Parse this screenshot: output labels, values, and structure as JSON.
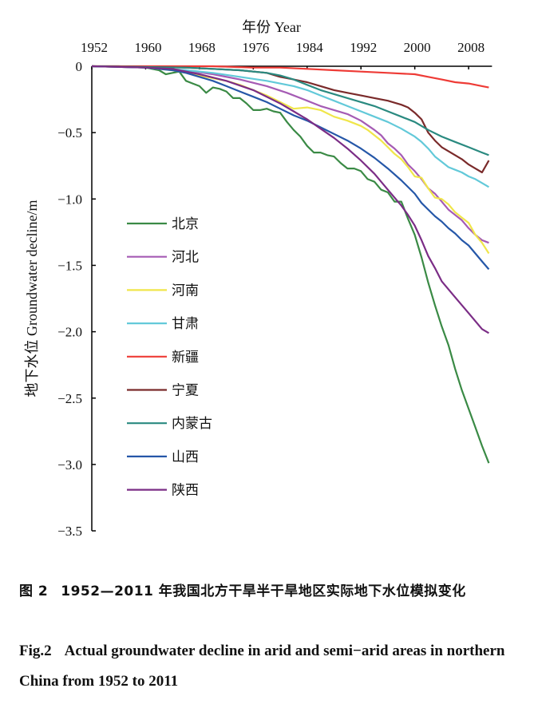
{
  "chart_data": {
    "type": "line",
    "xlabel": "年份 Year",
    "ylabel": "地下水位 Groundwater decline/m",
    "x_axis_position": "top",
    "xlim": [
      1952,
      2011
    ],
    "ylim": [
      -3.5,
      0
    ],
    "x_ticks": [
      1952,
      1960,
      1968,
      1976,
      1984,
      1992,
      2000,
      2008
    ],
    "x_tick_labels": [
      "1952",
      "1960",
      "1968",
      "1976",
      "1984",
      "1992",
      "2000",
      "2008"
    ],
    "y_ticks": [
      0,
      -0.5,
      -1.0,
      -1.5,
      -2.0,
      -2.5,
      -3.0,
      -3.5
    ],
    "y_tick_labels": [
      "0",
      "−0.5",
      "−1.0",
      "−1.5",
      "−2.0",
      "−2.5",
      "−3.0",
      "−3.5"
    ],
    "grid": false,
    "legend_position": "left-middle",
    "series": [
      {
        "name": "北京",
        "color": "#3a8a45",
        "points": [
          [
            1952,
            0
          ],
          [
            1956,
            0
          ],
          [
            1960,
            -0.01
          ],
          [
            1962,
            -0.03
          ],
          [
            1963,
            -0.06
          ],
          [
            1964,
            -0.05
          ],
          [
            1965,
            -0.04
          ],
          [
            1966,
            -0.11
          ],
          [
            1967,
            -0.13
          ],
          [
            1968,
            -0.15
          ],
          [
            1969,
            -0.2
          ],
          [
            1970,
            -0.16
          ],
          [
            1971,
            -0.17
          ],
          [
            1972,
            -0.19
          ],
          [
            1973,
            -0.24
          ],
          [
            1974,
            -0.24
          ],
          [
            1975,
            -0.28
          ],
          [
            1976,
            -0.33
          ],
          [
            1977,
            -0.33
          ],
          [
            1978,
            -0.32
          ],
          [
            1979,
            -0.34
          ],
          [
            1980,
            -0.35
          ],
          [
            1981,
            -0.42
          ],
          [
            1982,
            -0.48
          ],
          [
            1983,
            -0.53
          ],
          [
            1984,
            -0.6
          ],
          [
            1985,
            -0.65
          ],
          [
            1986,
            -0.65
          ],
          [
            1987,
            -0.67
          ],
          [
            1988,
            -0.68
          ],
          [
            1989,
            -0.73
          ],
          [
            1990,
            -0.77
          ],
          [
            1991,
            -0.77
          ],
          [
            1992,
            -0.79
          ],
          [
            1993,
            -0.85
          ],
          [
            1994,
            -0.87
          ],
          [
            1995,
            -0.93
          ],
          [
            1996,
            -0.95
          ],
          [
            1997,
            -1.02
          ],
          [
            1998,
            -1.02
          ],
          [
            1999,
            -1.15
          ],
          [
            2000,
            -1.27
          ],
          [
            2001,
            -1.44
          ],
          [
            2002,
            -1.63
          ],
          [
            2003,
            -1.8
          ],
          [
            2004,
            -1.96
          ],
          [
            2005,
            -2.1
          ],
          [
            2006,
            -2.28
          ],
          [
            2007,
            -2.44
          ],
          [
            2008,
            -2.58
          ],
          [
            2009,
            -2.72
          ],
          [
            2010,
            -2.86
          ],
          [
            2011,
            -2.99
          ]
        ]
      },
      {
        "name": "河北",
        "color": "#a55bb4",
        "points": [
          [
            1952,
            0
          ],
          [
            1960,
            -0.01
          ],
          [
            1966,
            -0.03
          ],
          [
            1970,
            -0.06
          ],
          [
            1974,
            -0.1
          ],
          [
            1978,
            -0.15
          ],
          [
            1981,
            -0.2
          ],
          [
            1984,
            -0.26
          ],
          [
            1986,
            -0.3
          ],
          [
            1988,
            -0.33
          ],
          [
            1990,
            -0.36
          ],
          [
            1992,
            -0.41
          ],
          [
            1994,
            -0.48
          ],
          [
            1995,
            -0.52
          ],
          [
            1996,
            -0.58
          ],
          [
            1997,
            -0.62
          ],
          [
            1998,
            -0.67
          ],
          [
            1999,
            -0.74
          ],
          [
            2000,
            -0.79
          ],
          [
            2001,
            -0.85
          ],
          [
            2002,
            -0.92
          ],
          [
            2003,
            -0.96
          ],
          [
            2004,
            -1.02
          ],
          [
            2005,
            -1.08
          ],
          [
            2006,
            -1.12
          ],
          [
            2007,
            -1.16
          ],
          [
            2008,
            -1.22
          ],
          [
            2009,
            -1.27
          ],
          [
            2010,
            -1.31
          ],
          [
            2011,
            -1.33
          ]
        ]
      },
      {
        "name": "河南",
        "color": "#f0e64a",
        "points": [
          [
            1952,
            0
          ],
          [
            1960,
            -0.01
          ],
          [
            1964,
            -0.03
          ],
          [
            1966,
            -0.05
          ],
          [
            1968,
            -0.07
          ],
          [
            1970,
            -0.09
          ],
          [
            1972,
            -0.11
          ],
          [
            1974,
            -0.14
          ],
          [
            1976,
            -0.18
          ],
          [
            1978,
            -0.22
          ],
          [
            1980,
            -0.27
          ],
          [
            1982,
            -0.32
          ],
          [
            1984,
            -0.31
          ],
          [
            1986,
            -0.33
          ],
          [
            1988,
            -0.38
          ],
          [
            1990,
            -0.41
          ],
          [
            1992,
            -0.45
          ],
          [
            1993,
            -0.48
          ],
          [
            1994,
            -0.52
          ],
          [
            1995,
            -0.56
          ],
          [
            1996,
            -0.61
          ],
          [
            1997,
            -0.66
          ],
          [
            1998,
            -0.7
          ],
          [
            1999,
            -0.76
          ],
          [
            2000,
            -0.83
          ],
          [
            2001,
            -0.84
          ],
          [
            2002,
            -0.92
          ],
          [
            2003,
            -0.99
          ],
          [
            2004,
            -1.0
          ],
          [
            2005,
            -1.04
          ],
          [
            2006,
            -1.1
          ],
          [
            2007,
            -1.14
          ],
          [
            2008,
            -1.18
          ],
          [
            2009,
            -1.27
          ],
          [
            2010,
            -1.33
          ],
          [
            2011,
            -1.41
          ]
        ]
      },
      {
        "name": "甘肃",
        "color": "#62c9d9",
        "points": [
          [
            1952,
            0
          ],
          [
            1960,
            -0.01
          ],
          [
            1966,
            -0.03
          ],
          [
            1970,
            -0.05
          ],
          [
            1974,
            -0.08
          ],
          [
            1978,
            -0.11
          ],
          [
            1982,
            -0.15
          ],
          [
            1984,
            -0.18
          ],
          [
            1986,
            -0.22
          ],
          [
            1988,
            -0.26
          ],
          [
            1990,
            -0.3
          ],
          [
            1992,
            -0.34
          ],
          [
            1994,
            -0.38
          ],
          [
            1996,
            -0.42
          ],
          [
            1998,
            -0.47
          ],
          [
            2000,
            -0.53
          ],
          [
            2001,
            -0.57
          ],
          [
            2002,
            -0.62
          ],
          [
            2003,
            -0.68
          ],
          [
            2004,
            -0.72
          ],
          [
            2005,
            -0.76
          ],
          [
            2006,
            -0.78
          ],
          [
            2007,
            -0.8
          ],
          [
            2008,
            -0.83
          ],
          [
            2009,
            -0.85
          ],
          [
            2010,
            -0.88
          ],
          [
            2011,
            -0.91
          ]
        ]
      },
      {
        "name": "新疆",
        "color": "#ee3b36",
        "points": [
          [
            1952,
            0
          ],
          [
            1970,
            0
          ],
          [
            1976,
            -0.01
          ],
          [
            1980,
            -0.01
          ],
          [
            1984,
            -0.02
          ],
          [
            1988,
            -0.03
          ],
          [
            1992,
            -0.04
          ],
          [
            1996,
            -0.05
          ],
          [
            2000,
            -0.06
          ],
          [
            2002,
            -0.08
          ],
          [
            2004,
            -0.1
          ],
          [
            2006,
            -0.12
          ],
          [
            2008,
            -0.13
          ],
          [
            2010,
            -0.15
          ],
          [
            2011,
            -0.16
          ]
        ]
      },
      {
        "name": "宁夏",
        "color": "#7a2a2a",
        "points": [
          [
            1952,
            0
          ],
          [
            1966,
            -0.01
          ],
          [
            1970,
            -0.02
          ],
          [
            1974,
            -0.03
          ],
          [
            1978,
            -0.05
          ],
          [
            1980,
            -0.08
          ],
          [
            1982,
            -0.1
          ],
          [
            1984,
            -0.12
          ],
          [
            1986,
            -0.15
          ],
          [
            1988,
            -0.18
          ],
          [
            1990,
            -0.2
          ],
          [
            1992,
            -0.22
          ],
          [
            1994,
            -0.24
          ],
          [
            1996,
            -0.26
          ],
          [
            1998,
            -0.29
          ],
          [
            1999,
            -0.31
          ],
          [
            2000,
            -0.35
          ],
          [
            2001,
            -0.4
          ],
          [
            2002,
            -0.5
          ],
          [
            2003,
            -0.56
          ],
          [
            2004,
            -0.61
          ],
          [
            2005,
            -0.64
          ],
          [
            2006,
            -0.67
          ],
          [
            2007,
            -0.7
          ],
          [
            2008,
            -0.74
          ],
          [
            2009,
            -0.77
          ],
          [
            2010,
            -0.8
          ],
          [
            2011,
            -0.71
          ]
        ]
      },
      {
        "name": "内蒙古",
        "color": "#2a8a80",
        "points": [
          [
            1952,
            0
          ],
          [
            1966,
            -0.01
          ],
          [
            1970,
            -0.02
          ],
          [
            1974,
            -0.03
          ],
          [
            1978,
            -0.05
          ],
          [
            1980,
            -0.07
          ],
          [
            1982,
            -0.1
          ],
          [
            1984,
            -0.14
          ],
          [
            1986,
            -0.18
          ],
          [
            1988,
            -0.21
          ],
          [
            1990,
            -0.24
          ],
          [
            1992,
            -0.27
          ],
          [
            1994,
            -0.3
          ],
          [
            1996,
            -0.34
          ],
          [
            1998,
            -0.38
          ],
          [
            2000,
            -0.42
          ],
          [
            2002,
            -0.48
          ],
          [
            2004,
            -0.53
          ],
          [
            2006,
            -0.57
          ],
          [
            2008,
            -0.61
          ],
          [
            2010,
            -0.65
          ],
          [
            2011,
            -0.67
          ]
        ]
      },
      {
        "name": "山西",
        "color": "#2557a8",
        "points": [
          [
            1952,
            0
          ],
          [
            1960,
            -0.01
          ],
          [
            1964,
            -0.03
          ],
          [
            1966,
            -0.05
          ],
          [
            1968,
            -0.08
          ],
          [
            1970,
            -0.11
          ],
          [
            1972,
            -0.15
          ],
          [
            1974,
            -0.19
          ],
          [
            1976,
            -0.23
          ],
          [
            1978,
            -0.27
          ],
          [
            1980,
            -0.32
          ],
          [
            1982,
            -0.37
          ],
          [
            1984,
            -0.41
          ],
          [
            1986,
            -0.46
          ],
          [
            1988,
            -0.51
          ],
          [
            1990,
            -0.56
          ],
          [
            1992,
            -0.62
          ],
          [
            1994,
            -0.69
          ],
          [
            1996,
            -0.77
          ],
          [
            1998,
            -0.86
          ],
          [
            2000,
            -0.96
          ],
          [
            2001,
            -1.03
          ],
          [
            2002,
            -1.08
          ],
          [
            2003,
            -1.13
          ],
          [
            2004,
            -1.17
          ],
          [
            2005,
            -1.22
          ],
          [
            2006,
            -1.26
          ],
          [
            2007,
            -1.31
          ],
          [
            2008,
            -1.35
          ],
          [
            2009,
            -1.41
          ],
          [
            2010,
            -1.47
          ],
          [
            2011,
            -1.53
          ]
        ]
      },
      {
        "name": "陕西",
        "color": "#7b2d86",
        "points": [
          [
            1952,
            0
          ],
          [
            1960,
            -0.01
          ],
          [
            1964,
            -0.02
          ],
          [
            1968,
            -0.06
          ],
          [
            1972,
            -0.11
          ],
          [
            1976,
            -0.18
          ],
          [
            1980,
            -0.28
          ],
          [
            1982,
            -0.34
          ],
          [
            1984,
            -0.4
          ],
          [
            1986,
            -0.47
          ],
          [
            1988,
            -0.54
          ],
          [
            1990,
            -0.62
          ],
          [
            1992,
            -0.71
          ],
          [
            1994,
            -0.81
          ],
          [
            1996,
            -0.93
          ],
          [
            1998,
            -1.05
          ],
          [
            1999,
            -1.12
          ],
          [
            2000,
            -1.2
          ],
          [
            2001,
            -1.31
          ],
          [
            2002,
            -1.43
          ],
          [
            2003,
            -1.52
          ],
          [
            2004,
            -1.62
          ],
          [
            2005,
            -1.68
          ],
          [
            2006,
            -1.74
          ],
          [
            2007,
            -1.8
          ],
          [
            2008,
            -1.86
          ],
          [
            2009,
            -1.92
          ],
          [
            2010,
            -1.98
          ],
          [
            2011,
            -2.01
          ]
        ]
      }
    ]
  },
  "caption": {
    "cn_fig_no": "图 2",
    "cn_text": "1952—2011 年我国北方干旱半干旱地区实际地下水位模拟变化",
    "en_fig_no": "Fig.2",
    "en_text": "Actual groundwater decline in arid and semi−arid areas in northern China from 1952 to 2011"
  }
}
